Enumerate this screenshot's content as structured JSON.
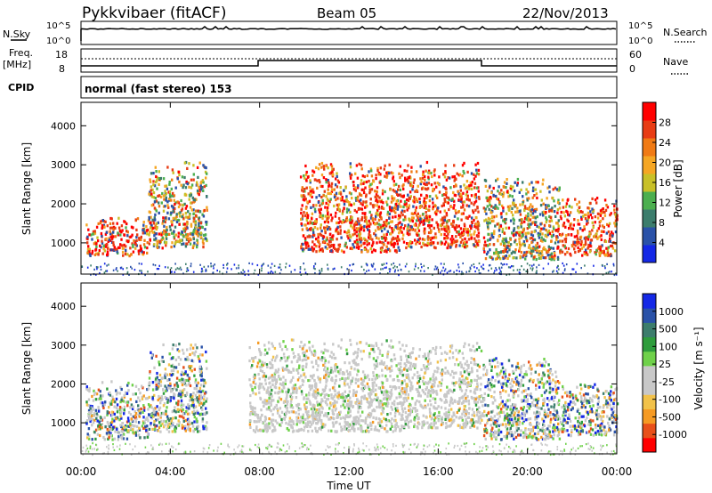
{
  "header": {
    "station": "Pykkvibaer (fitACF)",
    "beam": "Beam 05",
    "date": "22/Nov/2013"
  },
  "strips": {
    "nsky_label": "N.Sky",
    "nsky_ticks": [
      "10^5",
      "10^0"
    ],
    "nsearch_label": "N.Search",
    "nsearch_ticks": [
      "10^5",
      "10^0"
    ],
    "freq_label": "Freq.",
    "freq_unit": "[MHz]",
    "freq_ticks": [
      "18",
      "8"
    ],
    "nave_label": "Nave",
    "nave_ticks": [
      "60",
      "0"
    ],
    "cpid_label": "CPID",
    "cpid_text": "normal (fast stereo) 153"
  },
  "chart_data": [
    {
      "type": "heatmap",
      "panel": "power",
      "ylabel": "Slant Range [km]",
      "yticks": [
        1000,
        2000,
        3000,
        4000
      ],
      "ylim": [
        200,
        4600
      ],
      "xlim": [
        0,
        24
      ],
      "colorbar": {
        "label": "Power [dB]",
        "ticks": [
          "28",
          "24",
          "20",
          "16",
          "12",
          "8",
          "4"
        ],
        "colors": [
          "#1428e6",
          "#2a52a8",
          "#3c7d6c",
          "#4caf4f",
          "#c8c028",
          "#f5a623",
          "#f07a14",
          "#e83c14",
          "#ff0000"
        ]
      },
      "scatter_regions": [
        {
          "t0": 0.2,
          "t1": 3.0,
          "r0": 700,
          "r1": 1700,
          "level": "high"
        },
        {
          "t0": 3.0,
          "t1": 5.6,
          "r0": 900,
          "r1": 3100,
          "level": "mixed"
        },
        {
          "t0": 9.8,
          "t1": 14.3,
          "r0": 800,
          "r1": 3100,
          "level": "high"
        },
        {
          "t0": 14.3,
          "t1": 17.8,
          "r0": 900,
          "r1": 3100,
          "level": "high"
        },
        {
          "t0": 18.0,
          "t1": 21.4,
          "r0": 600,
          "r1": 2700,
          "level": "mixed"
        },
        {
          "t0": 21.4,
          "t1": 24.0,
          "r0": 700,
          "r1": 2200,
          "level": "high"
        }
      ]
    },
    {
      "type": "heatmap",
      "panel": "velocity",
      "ylabel": "Slant Range [km]",
      "yticks": [
        1000,
        2000,
        3000,
        4000
      ],
      "ylim": [
        200,
        4600
      ],
      "xlim": [
        0,
        24
      ],
      "xticks": [
        "00:00",
        "04:00",
        "08:00",
        "12:00",
        "16:00",
        "20:00",
        "00:00"
      ],
      "xlabel": "Time UT",
      "colorbar": {
        "label": "Velocity [m s⁻¹]",
        "ticks": [
          "1000",
          "500",
          "100",
          "25",
          "-25",
          "-100",
          "-500",
          "-1000"
        ],
        "colors": [
          "#ff0000",
          "#e8501a",
          "#f59a23",
          "#f2c24a",
          "#c8c8c8",
          "#c8c8c8",
          "#6fd14a",
          "#2e9c3c",
          "#3c7d6c",
          "#2a52a8",
          "#1428e6"
        ]
      },
      "scatter_regions": [
        {
          "t0": 0.2,
          "t1": 3.0,
          "r0": 600,
          "r1": 2100,
          "level": "mixed"
        },
        {
          "t0": 3.0,
          "t1": 5.6,
          "r0": 800,
          "r1": 3100,
          "level": "mixed"
        },
        {
          "t0": 7.5,
          "t1": 14.3,
          "r0": 800,
          "r1": 3200,
          "level": "grey"
        },
        {
          "t0": 14.3,
          "t1": 18.0,
          "r0": 900,
          "r1": 3100,
          "level": "grey"
        },
        {
          "t0": 18.0,
          "t1": 21.4,
          "r0": 600,
          "r1": 2700,
          "level": "mixed"
        },
        {
          "t0": 21.4,
          "t1": 24.0,
          "r0": 700,
          "r1": 2100,
          "level": "mixed"
        }
      ]
    }
  ]
}
